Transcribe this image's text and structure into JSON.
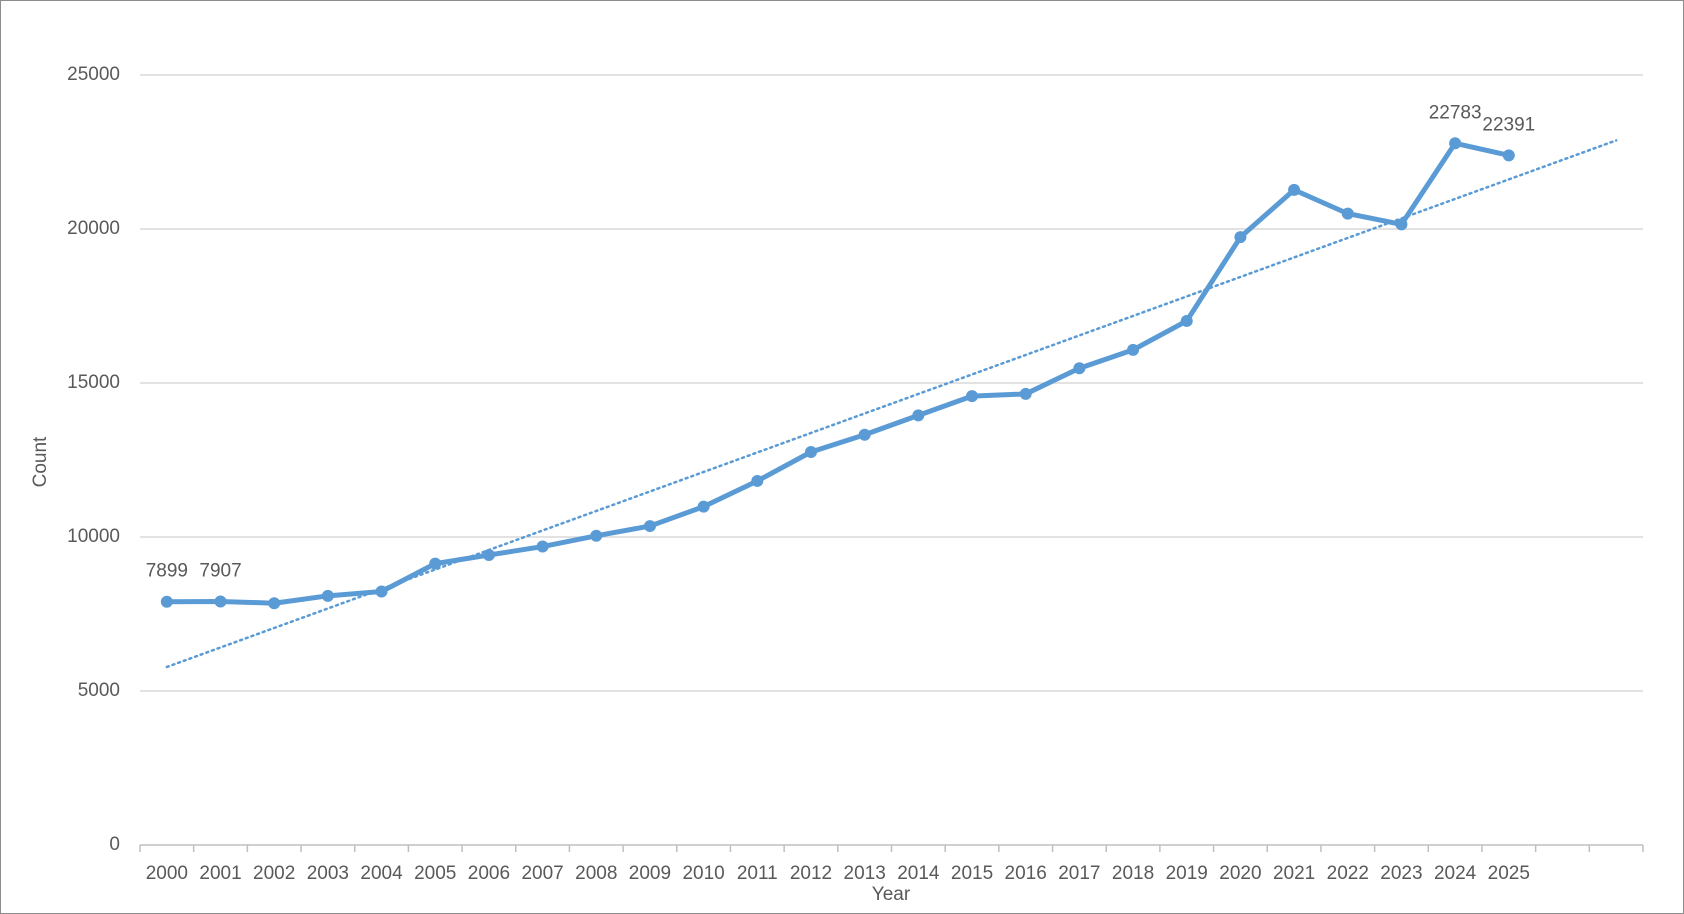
{
  "chart_data": {
    "type": "line",
    "x_label": "Year",
    "y_label": "Count",
    "categories": [
      "2000",
      "2001",
      "2002",
      "2003",
      "2004",
      "2005",
      "2006",
      "2007",
      "2008",
      "2009",
      "2010",
      "2011",
      "2012",
      "2013",
      "2014",
      "2015",
      "2016",
      "2017",
      "2018",
      "2019",
      "2020",
      "2021",
      "2022",
      "2023",
      "2024",
      "2025",
      null,
      null
    ],
    "series": [
      {
        "name": "Count",
        "color": "#5b9bd5",
        "values": [
          7899,
          7907,
          7850,
          8090,
          8230,
          9135,
          9415,
          9690,
          10040,
          10355,
          10985,
          11820,
          12760,
          13320,
          13950,
          14575,
          14645,
          15480,
          16075,
          17015,
          19735,
          21270,
          20500,
          20150,
          22783,
          22391,
          null,
          null
        ],
        "value_labels": [
          "7899",
          "7907",
          null,
          null,
          null,
          null,
          null,
          null,
          null,
          null,
          null,
          null,
          null,
          null,
          null,
          null,
          null,
          null,
          null,
          null,
          null,
          null,
          null,
          null,
          "22783",
          "22391",
          null,
          null
        ]
      }
    ],
    "trendline": "linear",
    "ylim": [
      0,
      25000
    ],
    "yticks": [
      0,
      5000,
      10000,
      15000,
      20000,
      25000
    ],
    "grid": true
  }
}
